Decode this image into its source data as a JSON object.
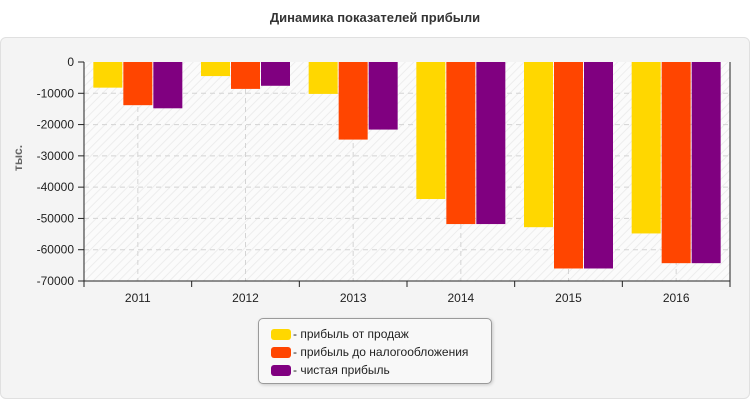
{
  "chart_data": {
    "type": "bar",
    "title": "Динамика показателей прибыли",
    "ylabel": "тыс.",
    "xlabel": "",
    "categories": [
      "2011",
      "2012",
      "2013",
      "2014",
      "2015",
      "2016"
    ],
    "ylim": [
      -70000,
      0
    ],
    "yticks": [
      0,
      -10000,
      -20000,
      -30000,
      -40000,
      -50000,
      -60000,
      -70000
    ],
    "grid": true,
    "legend_position": "bottom-center",
    "series": [
      {
        "name": "- прибыль от продаж",
        "color": "#ffd700",
        "values": [
          -8200,
          -4500,
          -10200,
          -43800,
          -52800,
          -54800
        ]
      },
      {
        "name": "- прибыль до налогообложения",
        "color": "#ff4500",
        "values": [
          -13800,
          -8600,
          -24800,
          -51800,
          -66000,
          -64300
        ]
      },
      {
        "name": "- чистая прибыль",
        "color": "#800080",
        "values": [
          -14800,
          -7600,
          -21600,
          -51800,
          -66000,
          -64300
        ]
      }
    ]
  }
}
